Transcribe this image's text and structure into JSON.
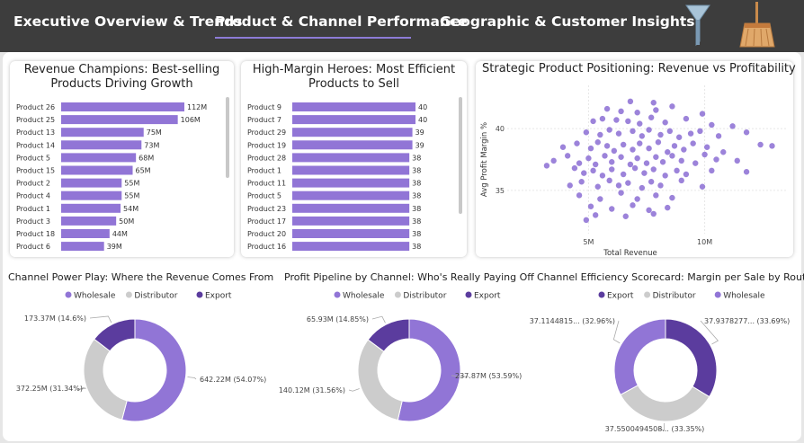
{
  "tabs": [
    {
      "label": "Executive Overview & Trends",
      "active": false
    },
    {
      "label": "Product & Channel Performance",
      "active": true
    },
    {
      "label": "Geographic & Customer Insights",
      "active": false
    }
  ],
  "icons": {
    "filter": "funnel-icon",
    "clear": "broom-icon"
  },
  "colors": {
    "purple": "#9175d6",
    "dark_purple": "#5b3c9e",
    "gray": "#cccccc",
    "accent": "#8d7bd6"
  },
  "bar_chart_1": {
    "title": "Revenue Champions: Best-selling Products Driving Growth",
    "chart_data": {
      "type": "bar",
      "orientation": "horizontal",
      "categories": [
        "Product 26",
        "Product 25",
        "Product 13",
        "Product 14",
        "Product 5",
        "Product 15",
        "Product 2",
        "Product 4",
        "Product 1",
        "Product 3",
        "Product 18",
        "Product 6"
      ],
      "values": [
        112,
        106,
        75,
        73,
        68,
        65,
        55,
        55,
        54,
        50,
        44,
        39
      ],
      "value_labels": [
        "112M",
        "106M",
        "75M",
        "73M",
        "68M",
        "65M",
        "55M",
        "55M",
        "54M",
        "50M",
        "44M",
        "39M"
      ],
      "xlim": [
        0,
        112
      ]
    }
  },
  "bar_chart_2": {
    "title": "High-Margin Heroes: Most Efficient Products to Sell",
    "chart_data": {
      "type": "bar",
      "orientation": "horizontal",
      "categories": [
        "Product 9",
        "Product 7",
        "Product 29",
        "Product 19",
        "Product 28",
        "Product 1",
        "Product 11",
        "Product 5",
        "Product 23",
        "Product 17",
        "Product 20",
        "Product 16"
      ],
      "values": [
        40,
        40,
        39,
        39,
        38,
        38,
        38,
        38,
        38,
        38,
        38,
        38
      ],
      "value_labels": [
        "40",
        "40",
        "39",
        "39",
        "38",
        "38",
        "38",
        "38",
        "38",
        "38",
        "38",
        "38"
      ],
      "xlim": [
        0,
        40
      ]
    }
  },
  "scatter": {
    "title": "Strategic Product Positioning: Revenue vs Profitability",
    "chart_data": {
      "type": "scatter",
      "xlabel": "Total Revenue",
      "ylabel": "Avg Profit Margin %",
      "x_ticks": [
        "5M",
        "10M"
      ],
      "y_ticks": [
        "40",
        "35"
      ],
      "xlim": [
        1.5,
        13.5
      ],
      "ylim": [
        31.5,
        43.5
      ],
      "points": [
        [
          6.8,
          42.2
        ],
        [
          7.8,
          42.1
        ],
        [
          5.8,
          41.6
        ],
        [
          6.4,
          41.4
        ],
        [
          7.1,
          41.3
        ],
        [
          7.9,
          41.5
        ],
        [
          8.6,
          41.8
        ],
        [
          9.9,
          41.2
        ],
        [
          5.2,
          40.6
        ],
        [
          5.6,
          40.8
        ],
        [
          6.2,
          40.7
        ],
        [
          6.7,
          40.6
        ],
        [
          7.2,
          40.4
        ],
        [
          7.7,
          40.9
        ],
        [
          8.3,
          40.5
        ],
        [
          9.2,
          40.8
        ],
        [
          10.3,
          40.3
        ],
        [
          11.2,
          40.2
        ],
        [
          4.9,
          39.7
        ],
        [
          5.5,
          39.5
        ],
        [
          5.9,
          39.9
        ],
        [
          6.3,
          39.6
        ],
        [
          6.9,
          39.8
        ],
        [
          7.3,
          39.4
        ],
        [
          7.6,
          39.9
        ],
        [
          8.1,
          39.5
        ],
        [
          8.5,
          39.8
        ],
        [
          8.9,
          39.3
        ],
        [
          9.4,
          39.6
        ],
        [
          9.8,
          39.8
        ],
        [
          10.6,
          39.4
        ],
        [
          11.8,
          39.7
        ],
        [
          3.9,
          38.5
        ],
        [
          4.5,
          38.8
        ],
        [
          5.1,
          38.4
        ],
        [
          5.4,
          38.9
        ],
        [
          5.8,
          38.6
        ],
        [
          6.1,
          38.2
        ],
        [
          6.5,
          38.7
        ],
        [
          6.9,
          38.3
        ],
        [
          7.2,
          38.8
        ],
        [
          7.6,
          38.4
        ],
        [
          8.0,
          38.9
        ],
        [
          8.4,
          38.1
        ],
        [
          8.7,
          38.6
        ],
        [
          9.1,
          38.3
        ],
        [
          9.5,
          38.8
        ],
        [
          10.1,
          38.5
        ],
        [
          10.8,
          38.1
        ],
        [
          12.4,
          38.7
        ],
        [
          12.9,
          38.6
        ],
        [
          3.5,
          37.4
        ],
        [
          4.1,
          37.8
        ],
        [
          4.6,
          37.2
        ],
        [
          5.0,
          37.6
        ],
        [
          5.3,
          37.1
        ],
        [
          5.7,
          37.8
        ],
        [
          6.0,
          37.3
        ],
        [
          6.4,
          37.7
        ],
        [
          6.8,
          37.1
        ],
        [
          7.1,
          37.6
        ],
        [
          7.5,
          37.2
        ],
        [
          7.9,
          37.7
        ],
        [
          8.2,
          37.3
        ],
        [
          8.6,
          37.8
        ],
        [
          9.0,
          37.4
        ],
        [
          9.6,
          37.2
        ],
        [
          10.0,
          37.9
        ],
        [
          10.5,
          37.5
        ],
        [
          11.4,
          37.4
        ],
        [
          3.2,
          37.0
        ],
        [
          4.4,
          36.8
        ],
        [
          4.8,
          36.4
        ],
        [
          5.2,
          36.6
        ],
        [
          5.6,
          36.2
        ],
        [
          6.0,
          36.7
        ],
        [
          6.5,
          36.3
        ],
        [
          7.0,
          36.8
        ],
        [
          7.4,
          36.4
        ],
        [
          7.8,
          36.7
        ],
        [
          8.3,
          36.2
        ],
        [
          8.8,
          36.6
        ],
        [
          9.2,
          36.3
        ],
        [
          10.3,
          36.6
        ],
        [
          11.8,
          36.5
        ],
        [
          4.2,
          35.4
        ],
        [
          4.7,
          35.7
        ],
        [
          5.4,
          35.3
        ],
        [
          5.9,
          35.8
        ],
        [
          6.3,
          35.4
        ],
        [
          6.7,
          35.6
        ],
        [
          7.3,
          35.2
        ],
        [
          7.7,
          35.7
        ],
        [
          8.1,
          35.4
        ],
        [
          9.0,
          35.8
        ],
        [
          9.9,
          35.3
        ],
        [
          4.6,
          34.6
        ],
        [
          5.5,
          34.3
        ],
        [
          6.4,
          34.8
        ],
        [
          7.1,
          34.3
        ],
        [
          7.9,
          34.6
        ],
        [
          8.6,
          34.4
        ],
        [
          5.1,
          33.7
        ],
        [
          6.0,
          33.5
        ],
        [
          6.9,
          33.8
        ],
        [
          7.6,
          33.4
        ],
        [
          8.4,
          33.6
        ],
        [
          5.3,
          33.0
        ],
        [
          6.6,
          32.9
        ],
        [
          7.8,
          33.1
        ],
        [
          4.9,
          32.6
        ]
      ]
    }
  },
  "donut_1": {
    "title": "Channel Power Play: Where the Revenue Comes From",
    "legend": [
      "Wholesale",
      "Distributor",
      "Export"
    ],
    "chart_data": {
      "type": "pie",
      "labels": [
        "Wholesale",
        "Distributor",
        "Export"
      ],
      "values": [
        642.22,
        372.25,
        173.37
      ],
      "percents": [
        54.07,
        31.34,
        14.6
      ],
      "data_labels": [
        "642.22M (54.07%)",
        "372.25M (31.34%)",
        "173.37M (14.6%)"
      ]
    }
  },
  "donut_2": {
    "title": "Profit Pipeline by Channel: Who's Really Paying Off",
    "legend": [
      "Wholesale",
      "Distributor",
      "Export"
    ],
    "chart_data": {
      "type": "pie",
      "labels": [
        "Wholesale",
        "Distributor",
        "Export"
      ],
      "values": [
        237.87,
        140.12,
        65.93
      ],
      "percents": [
        53.59,
        31.56,
        14.85
      ],
      "data_labels": [
        "237.87M (53.59%)",
        "140.12M (31.56%)",
        "65.93M (14.85%)"
      ]
    }
  },
  "donut_3": {
    "title": "Channel Efficiency Scorecard: Margin per Sale by Route",
    "legend": [
      "Export",
      "Distributor",
      "Wholesale"
    ],
    "chart_data": {
      "type": "pie",
      "labels": [
        "Export",
        "Distributor",
        "Wholesale"
      ],
      "values": [
        37.9378277,
        37.5500494508,
        37.1144815
      ],
      "percents": [
        33.69,
        33.35,
        32.96
      ],
      "data_labels": [
        "37.9378277... (33.69%)",
        "37.5500494508... (33.35%)",
        "37.1144815... (32.96%)"
      ]
    }
  }
}
